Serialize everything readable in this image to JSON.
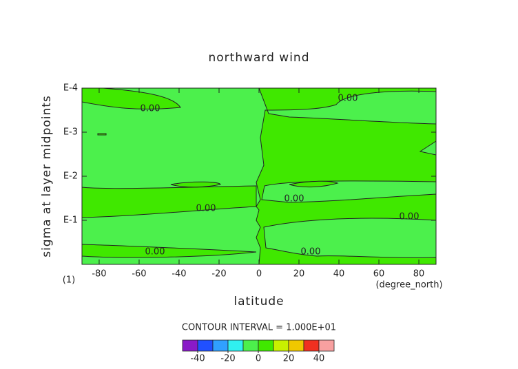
{
  "chart_data": {
    "type": "contour",
    "title": "northward wind",
    "x_label": "latitude",
    "y_label": "sigma at layer midpoints",
    "x_units": "(degree_north)",
    "y_units": "(1)",
    "annotation": "CONTOUR INTERVAL = 1.000E+01",
    "contour_labels": [
      "0.00",
      "0.00",
      "0.00",
      "0.00",
      "0.00",
      "0.00",
      "0.00"
    ],
    "xlim": [
      -88.6,
      88.6
    ],
    "xticks": [
      -80,
      -60,
      -40,
      -20,
      0,
      20,
      40,
      60,
      80
    ],
    "ylim": [
      0.0001,
      1
    ],
    "log_y": true,
    "yticks": [
      {
        "value": 0.0001,
        "label": "E-4"
      },
      {
        "value": 0.001,
        "label": "E-3"
      },
      {
        "value": 0.01,
        "label": "E-2"
      },
      {
        "value": 0.1,
        "label": "E-1"
      }
    ],
    "colorbar": {
      "levels": [
        -50,
        -40,
        -30,
        -20,
        -10,
        0,
        10,
        20,
        30,
        40,
        50
      ],
      "colors": [
        "#8a1ac8",
        "#2050ff",
        "#30a0ff",
        "#30f0f0",
        "#4cf04c",
        "#40e800",
        "#c8f000",
        "#f0c800",
        "#f03020",
        "#f8a0a0"
      ],
      "ticks": [
        -40,
        -20,
        0,
        20,
        40
      ]
    }
  }
}
